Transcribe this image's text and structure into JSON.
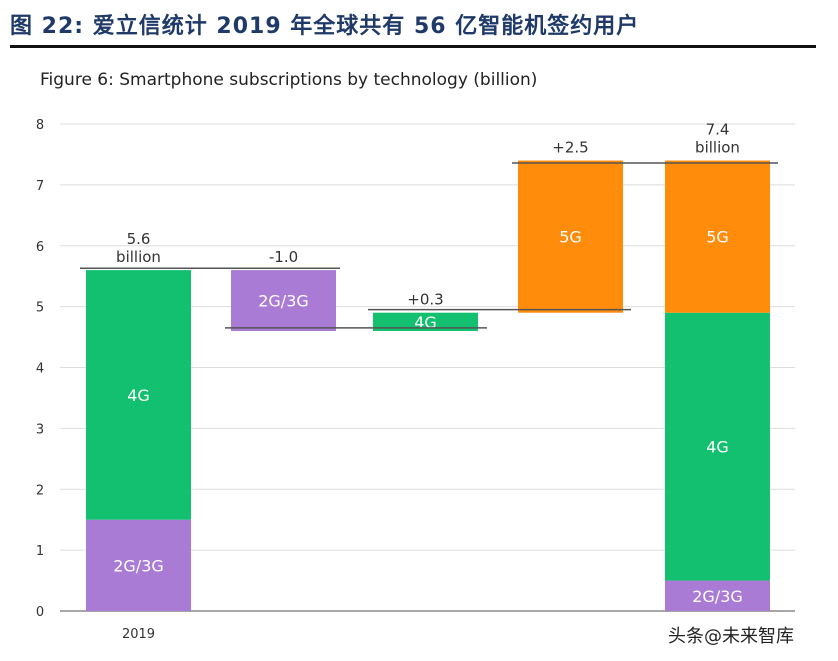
{
  "heading": "图 22:  爱立信统计 2019 年全球共有 56 亿智能机签约用户",
  "watermark": "头条@未来智库",
  "chart_data": {
    "type": "waterfall",
    "title": "Figure 6: Smartphone subscriptions by technology (billion)",
    "ylim": [
      0,
      8
    ],
    "yticks": [
      0,
      1,
      2,
      3,
      4,
      5,
      6,
      7,
      8
    ],
    "grid": true,
    "colors": {
      "2G/3G": "#a97bd4",
      "4G": "#12c06f",
      "5G": "#ff8c0a"
    },
    "bars": [
      {
        "xlabel": "2019",
        "label": "5.6\nbillion",
        "segments": [
          {
            "name": "2G/3G",
            "from": 0,
            "to": 1.5
          },
          {
            "name": "4G",
            "from": 1.5,
            "to": 5.6
          }
        ]
      },
      {
        "xlabel": "",
        "label": "-1.0",
        "segments": [
          {
            "name": "2G/3G",
            "from": 4.6,
            "to": 5.6
          }
        ]
      },
      {
        "xlabel": "",
        "label": "+0.3",
        "segments": [
          {
            "name": "4G",
            "from": 4.6,
            "to": 4.9
          }
        ]
      },
      {
        "xlabel": "",
        "label": "+2.5",
        "segments": [
          {
            "name": "5G",
            "from": 4.9,
            "to": 7.4
          }
        ]
      },
      {
        "xlabel": "",
        "label": "7.4\nbillion",
        "segments": [
          {
            "name": "2G/3G",
            "from": 0,
            "to": 0.5
          },
          {
            "name": "4G",
            "from": 0.5,
            "to": 4.9
          },
          {
            "name": "5G",
            "from": 4.9,
            "to": 7.4
          }
        ]
      }
    ]
  }
}
